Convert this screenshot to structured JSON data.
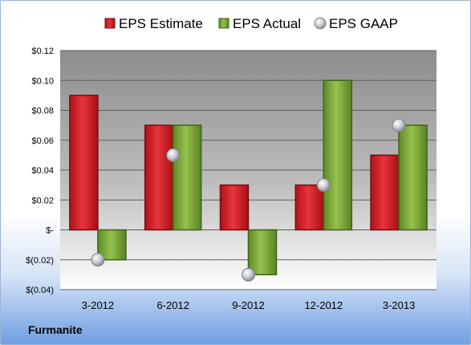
{
  "company": "Furmanite",
  "chart_data": {
    "type": "bar",
    "categories": [
      "3-2012",
      "6-2012",
      "9-2012",
      "12-2012",
      "3-2013"
    ],
    "series": [
      {
        "name": "EPS Estimate",
        "kind": "bar",
        "color": "#d2232a",
        "values": [
          0.09,
          0.07,
          0.03,
          0.03,
          0.05
        ]
      },
      {
        "name": "EPS Actual",
        "kind": "bar",
        "color": "#7aa33a",
        "values": [
          -0.02,
          0.07,
          -0.03,
          0.1,
          0.07
        ]
      },
      {
        "name": "EPS GAAP",
        "kind": "marker",
        "color": "#b8bcc4",
        "values": [
          -0.02,
          0.05,
          -0.03,
          0.03,
          0.07
        ]
      }
    ],
    "y_ticks": [
      {
        "value": 0.12,
        "label": "$0.12"
      },
      {
        "value": 0.1,
        "label": "$0.10"
      },
      {
        "value": 0.08,
        "label": "$0.08"
      },
      {
        "value": 0.06,
        "label": "$0.06"
      },
      {
        "value": 0.04,
        "label": "$0.04"
      },
      {
        "value": 0.02,
        "label": "$0.02"
      },
      {
        "value": 0.0,
        "label": "$-"
      },
      {
        "value": -0.02,
        "label": "$(0.02)"
      },
      {
        "value": -0.04,
        "label": "$(0.04)"
      }
    ],
    "ylim": [
      -0.04,
      0.12
    ],
    "grid": true,
    "legend_position": "top",
    "title": "",
    "xlabel": "",
    "ylabel": ""
  }
}
